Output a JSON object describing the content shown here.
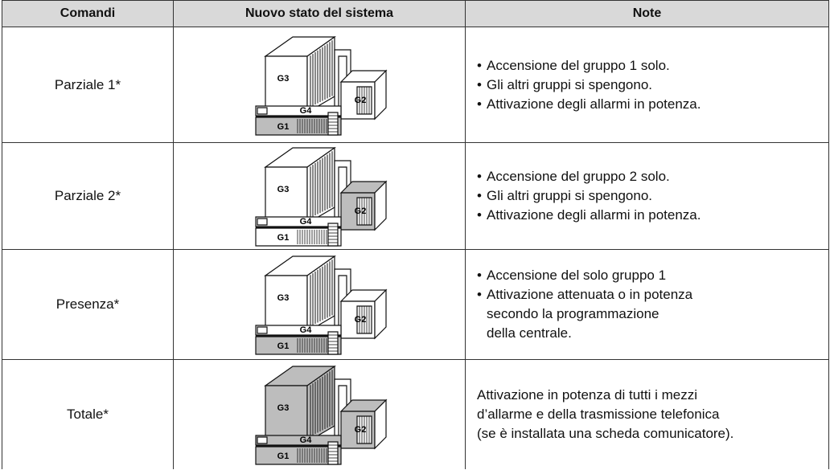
{
  "table": {
    "headers": [
      "Comandi",
      "Nuovo stato del sistema",
      "Note"
    ],
    "rows": [
      {
        "command": "Parziale 1*",
        "house_labels": [
          "G3",
          "G2",
          "G4",
          "G1"
        ],
        "notes": [
          {
            "bullet": "•",
            "lines": [
              "Accensione del gruppo 1 solo."
            ]
          },
          {
            "bullet": "•",
            "lines": [
              "Gli altri gruppi si spengono."
            ]
          },
          {
            "bullet": "•",
            "lines": [
              "Attivazione degli allarmi in potenza."
            ]
          }
        ]
      },
      {
        "command": "Parziale 2*",
        "house_labels": [
          "G3",
          "G2",
          "G4",
          "G1"
        ],
        "notes": [
          {
            "bullet": "•",
            "lines": [
              "Accensione del gruppo 2 solo."
            ]
          },
          {
            "bullet": "•",
            "lines": [
              "Gli altri gruppi si spengono."
            ]
          },
          {
            "bullet": "•",
            "lines": [
              "Attivazione degli allarmi in potenza."
            ]
          }
        ]
      },
      {
        "command": "Presenza*",
        "house_labels": [
          "G3",
          "G2",
          "G4",
          "G1"
        ],
        "notes": [
          {
            "bullet": "•",
            "lines": [
              "Accensione del solo gruppo 1"
            ]
          },
          {
            "bullet": "•",
            "lines": [
              "Attivazione attenuata o in potenza",
              "secondo la programmazione",
              "della centrale."
            ]
          }
        ]
      },
      {
        "command": "Totale*",
        "house_labels": [
          "G3",
          "G2",
          "G4",
          "G1"
        ],
        "notes": [
          {
            "lines": [
              "Attivazione in potenza di tutti i mezzi",
              "d’allarme e della trasmissione telefonica",
              "(se è installata una scheda comunicatore)."
            ]
          }
        ]
      }
    ]
  }
}
